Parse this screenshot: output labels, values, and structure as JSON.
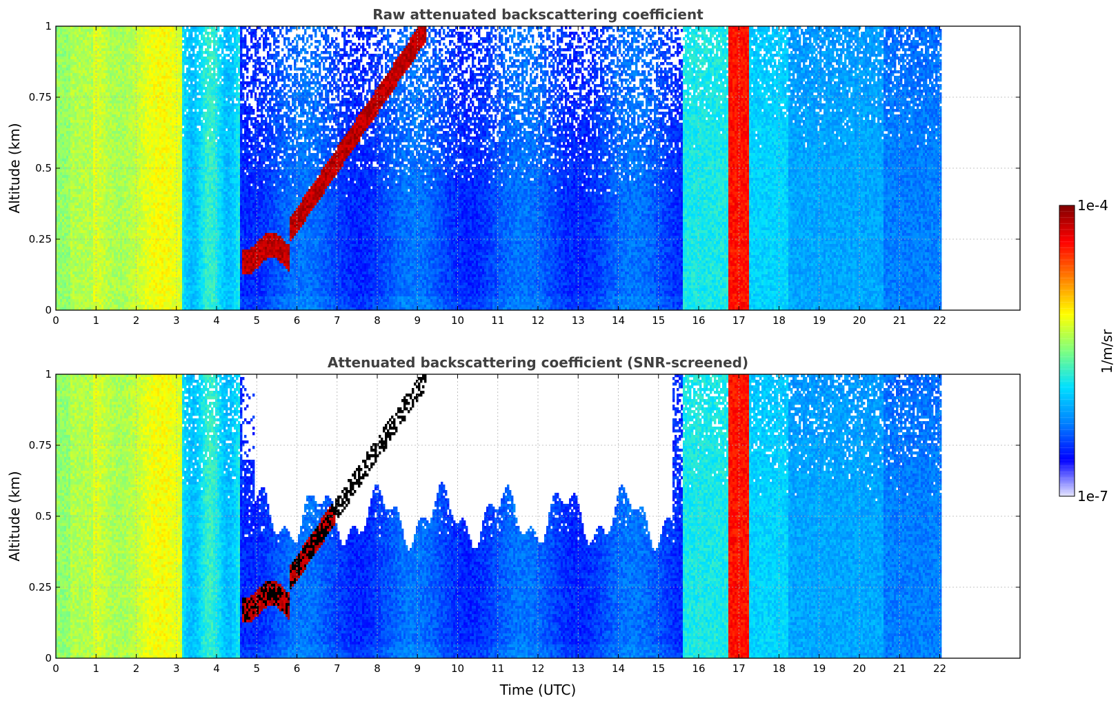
{
  "chart_data": [
    {
      "type": "heatmap",
      "title": "Raw attenuated backscattering coefficient",
      "xlabel": "",
      "ylabel": "Altitude (km)",
      "xlim": [
        0,
        24
      ],
      "ylim": [
        0,
        1
      ],
      "x_ticks": [
        "0",
        "1",
        "2",
        "3",
        "4",
        "5",
        "6",
        "7",
        "8",
        "9",
        "10",
        "11",
        "12",
        "13",
        "14",
        "15",
        "16",
        "17",
        "18",
        "19",
        "20",
        "21",
        "22"
      ],
      "y_ticks": [
        "0",
        "0.25",
        "0.5",
        "0.75",
        "1"
      ],
      "grid": true,
      "data_extent_hours": 22,
      "features": [
        {
          "x": [
            0,
            3.1
          ],
          "level": "high"
        },
        {
          "x": [
            3.1,
            4.6
          ],
          "level": "medium"
        },
        {
          "x": [
            4.6,
            15.6
          ],
          "level": "low"
        },
        {
          "x": [
            15.6,
            16.7
          ],
          "level": "medium"
        },
        {
          "x": [
            16.75,
            17.25
          ],
          "level": "very high"
        },
        {
          "x": [
            17.3,
            22
          ],
          "level": "medium-low"
        },
        {
          "x": [
            4.5,
            9.2
          ],
          "level": "very high",
          "note": "rising layer from 0.2 km to 1 km"
        }
      ]
    },
    {
      "type": "heatmap",
      "title": "Attenuated backscattering coefficient (SNR-screened)",
      "xlabel": "Time (UTC)",
      "ylabel": "Altitude (km)",
      "xlim": [
        0,
        24
      ],
      "ylim": [
        0,
        1
      ],
      "x_ticks": [
        "0",
        "1",
        "2",
        "3",
        "4",
        "5",
        "6",
        "7",
        "8",
        "9",
        "10",
        "11",
        "12",
        "13",
        "14",
        "15",
        "16",
        "17",
        "18",
        "19",
        "20",
        "21",
        "22"
      ],
      "y_ticks": [
        "0",
        "0.25",
        "0.5",
        "0.75",
        "1"
      ],
      "grid": true,
      "data_extent_hours": 22,
      "screened_region": {
        "x": [
          4.9,
          15.3
        ],
        "y_min": 0.5,
        "y_max": 1,
        "value": "removed"
      }
    }
  ],
  "colorbar": {
    "label": "1/m/sr",
    "min_label": "1e-7",
    "max_label": "1e-4",
    "scale": "log",
    "colormap": [
      "#e6e6ff",
      "#0000ff",
      "#0080ff",
      "#00e0ff",
      "#7fff7f",
      "#ffff00",
      "#ff8000",
      "#ff0000",
      "#800000"
    ]
  }
}
